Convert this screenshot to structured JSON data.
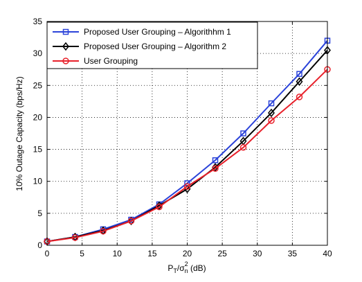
{
  "chart_data": {
    "type": "line",
    "title": "",
    "xlabel": "P_T/σ_n^2 (dB)",
    "xlabel_parts": {
      "p": "P",
      "p_sub": "T",
      "slash": "/σ",
      "sigma_sub": "n",
      "sigma_sup": "2",
      "unit": " (dB)"
    },
    "ylabel": "10% Outage Capacity (bps/Hz)",
    "xlim": [
      0,
      40
    ],
    "ylim": [
      0,
      35
    ],
    "xticks": [
      0,
      5,
      10,
      15,
      20,
      25,
      30,
      35,
      40
    ],
    "yticks": [
      0,
      5,
      10,
      15,
      20,
      25,
      30,
      35
    ],
    "grid": true,
    "legend_position": "top-left",
    "series": [
      {
        "name": "Proposed User Grouping – Algorithhm 1",
        "color": "#2b43d9",
        "marker": "square",
        "x": [
          0,
          4,
          8,
          12,
          16,
          20,
          24,
          28,
          32,
          36,
          40
        ],
        "y": [
          0.6,
          1.3,
          2.5,
          4.0,
          6.4,
          9.7,
          13.3,
          17.5,
          22.2,
          26.8,
          32.0
        ]
      },
      {
        "name": "Proposed User Grouping – Algorithm 2",
        "color": "#000000",
        "marker": "diamond",
        "x": [
          0,
          4,
          8,
          12,
          16,
          20,
          24,
          28,
          32,
          36,
          40
        ],
        "y": [
          0.6,
          1.3,
          2.3,
          3.8,
          6.2,
          8.8,
          12.2,
          16.3,
          20.7,
          25.6,
          30.5
        ]
      },
      {
        "name": "User Grouping",
        "color": "#e8202a",
        "marker": "circle",
        "x": [
          0,
          4,
          8,
          12,
          16,
          20,
          24,
          28,
          32,
          36,
          40
        ],
        "y": [
          0.6,
          1.2,
          2.2,
          3.8,
          6.0,
          9.2,
          12.0,
          15.3,
          19.5,
          23.2,
          27.5
        ]
      }
    ]
  }
}
